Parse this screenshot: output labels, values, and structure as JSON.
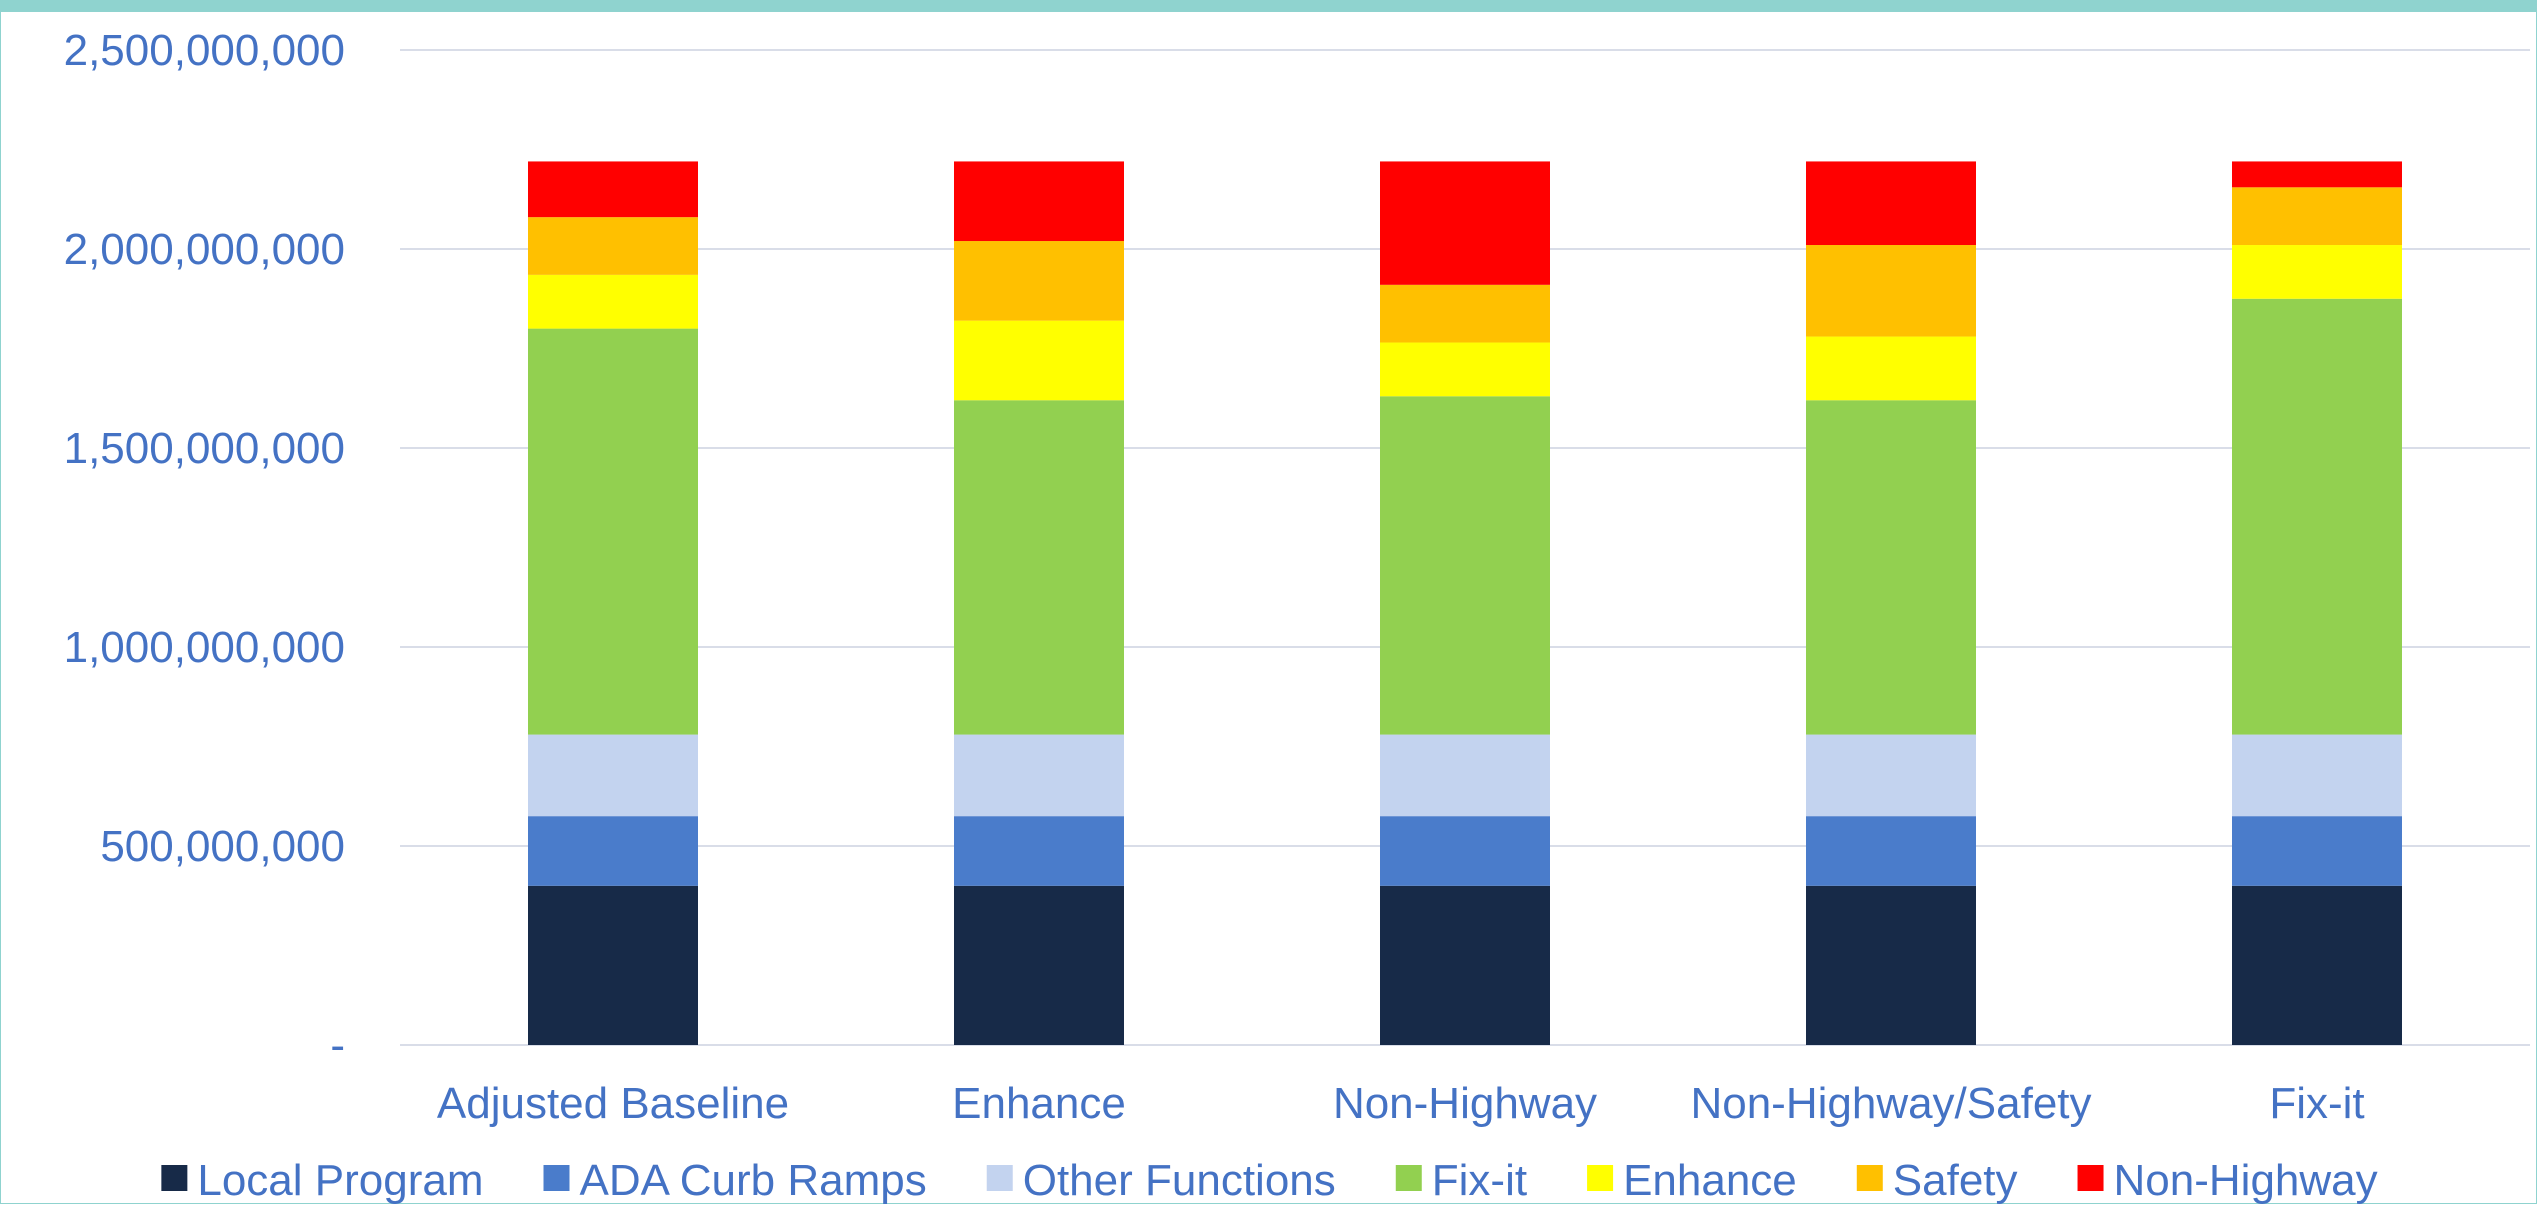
{
  "chart_data": {
    "type": "bar",
    "stacked": true,
    "title": "",
    "xlabel": "",
    "ylabel": "",
    "ylim": [
      0,
      2500000000
    ],
    "yticks": [
      0,
      500000000,
      1000000000,
      1500000000,
      2000000000,
      2500000000
    ],
    "ytick_labels": [
      "-",
      "500,000,000",
      "1,000,000,000",
      "1,500,000,000",
      "2,000,000,000",
      "2,500,000,000"
    ],
    "grid": true,
    "legend_position": "bottom",
    "categories": [
      "Adjusted Baseline",
      "Enhance",
      "Non-Highway",
      "Non-Highway/Safety",
      "Fix-it"
    ],
    "series": [
      {
        "name": "Local Program",
        "color": "#172a48",
        "values": [
          400000000,
          400000000,
          400000000,
          400000000,
          400000000
        ]
      },
      {
        "name": "ADA Curb Ramps",
        "color": "#4a7ccb",
        "values": [
          175000000,
          175000000,
          175000000,
          175000000,
          175000000
        ]
      },
      {
        "name": "Other Functions",
        "color": "#c3d3ef",
        "values": [
          205000000,
          205000000,
          205000000,
          205000000,
          205000000
        ]
      },
      {
        "name": "Fix-it",
        "color": "#92d050",
        "values": [
          1020000000,
          840000000,
          850000000,
          840000000,
          1095000000
        ]
      },
      {
        "name": "Enhance",
        "color": "#ffff00",
        "values": [
          135000000,
          200000000,
          135000000,
          160000000,
          135000000
        ]
      },
      {
        "name": "Safety",
        "color": "#ffc000",
        "values": [
          145000000,
          200000000,
          145000000,
          230000000,
          145000000
        ]
      },
      {
        "name": "Non-Highway",
        "color": "#ff0000",
        "values": [
          140000000,
          200000000,
          310000000,
          210000000,
          65000000
        ]
      }
    ]
  }
}
